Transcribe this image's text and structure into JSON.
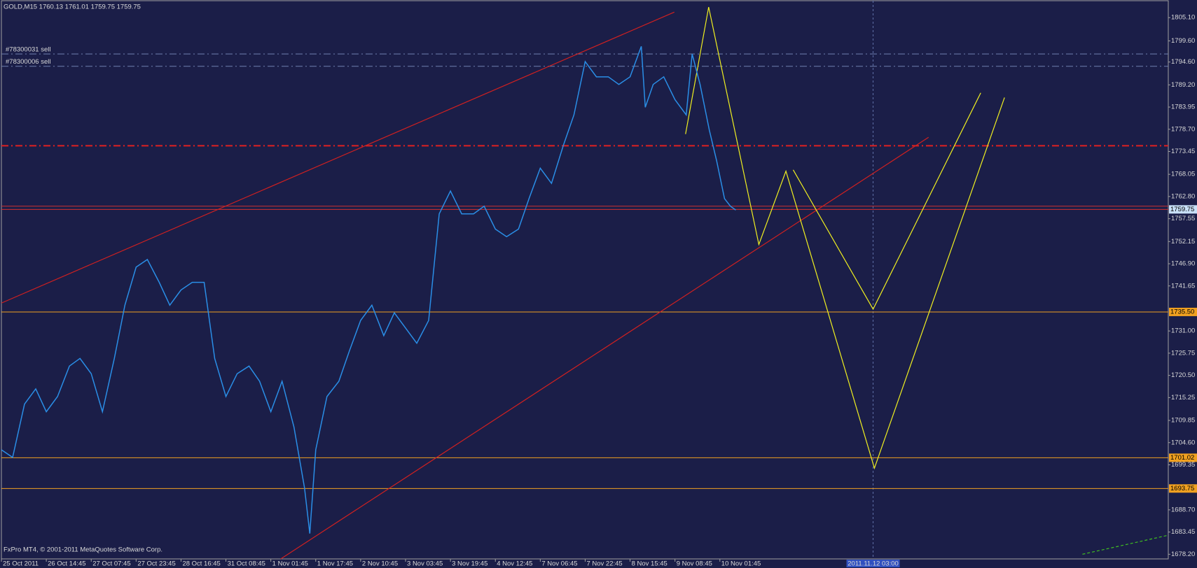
{
  "chart_data": {
    "type": "line",
    "title": "GOLD,M15  1760.13 1761.01 1759.75 1759.75",
    "footer": "FxPro MT4, © 2001-2011 MetaQuotes Software Corp.",
    "color": "#2a8ee6",
    "x": [
      0,
      17,
      35,
      52,
      68,
      85,
      103,
      119,
      136,
      153,
      171,
      187,
      204,
      221,
      239,
      255,
      272,
      289,
      307,
      323,
      340,
      357,
      375,
      391,
      408,
      425,
      443,
      459,
      467,
      476,
      493,
      511,
      527,
      544,
      561,
      579,
      595,
      612,
      629,
      647,
      663,
      680,
      697,
      715,
      731,
      748,
      765,
      783,
      799,
      816,
      833,
      851,
      867,
      884,
      901,
      919,
      935,
      952,
      969,
      975,
      987,
      1003,
      1020,
      1037,
      1046,
      1058,
      1072,
      1083,
      1095,
      1104,
      1112
    ],
    "values": [
      1702.9,
      1701.1,
      1713.7,
      1717.3,
      1711.9,
      1715.5,
      1722.7,
      1724.5,
      1720.9,
      1711.9,
      1724.5,
      1737.1,
      1746.1,
      1747.9,
      1742.5,
      1737.1,
      1740.7,
      1742.5,
      1742.5,
      1724.5,
      1715.5,
      1720.9,
      1722.7,
      1719.1,
      1711.9,
      1719.1,
      1708.3,
      1693.9,
      1683.1,
      1702.9,
      1715.5,
      1719.1,
      1726.3,
      1733.5,
      1737.1,
      1729.9,
      1735.3,
      1731.7,
      1728.1,
      1733.5,
      1758.7,
      1764.1,
      1758.7,
      1758.7,
      1760.5,
      1755.1,
      1753.3,
      1755.1,
      1762.3,
      1769.5,
      1765.9,
      1774.9,
      1782.1,
      1794.7,
      1791.1,
      1791.1,
      1789.3,
      1791.1,
      1798.3,
      1783.9,
      1789.3,
      1791.1,
      1785.7,
      1782.1,
      1796.5,
      1789.3,
      1778.5,
      1771.3,
      1762.3,
      1760.5,
      1759.6
    ],
    "xlim": [
      0,
      1767
    ],
    "ylim": [
      1677.1,
      1809.1
    ],
    "xticks": [
      {
        "value": 0,
        "label": "25 Oct 2011"
      },
      {
        "value": 68,
        "label": "26 Oct 14:45"
      },
      {
        "value": 136,
        "label": "27 Oct 07:45"
      },
      {
        "value": 204,
        "label": "27 Oct 23:45"
      },
      {
        "value": 272,
        "label": "28 Oct 16:45"
      },
      {
        "value": 340,
        "label": "31 Oct 08:45"
      },
      {
        "value": 408,
        "label": "1 Nov 01:45"
      },
      {
        "value": 476,
        "label": "1 Nov 17:45"
      },
      {
        "value": 544,
        "label": "2 Nov 10:45"
      },
      {
        "value": 612,
        "label": "3 Nov 03:45"
      },
      {
        "value": 680,
        "label": "3 Nov 19:45"
      },
      {
        "value": 748,
        "label": "4 Nov 12:45"
      },
      {
        "value": 816,
        "label": "7 Nov 06:45"
      },
      {
        "value": 884,
        "label": "7 Nov 22:45"
      },
      {
        "value": 952,
        "label": "8 Nov 15:45"
      },
      {
        "value": 1020,
        "label": "9 Nov 08:45"
      },
      {
        "value": 1088,
        "label": "10 Nov 01:45"
      }
    ],
    "yticks": [
      {
        "value": 1805.1,
        "label": "1805.10"
      },
      {
        "value": 1799.6,
        "label": "1799.60"
      },
      {
        "value": 1794.6,
        "label": "1794.60"
      },
      {
        "value": 1789.2,
        "label": "1789.20"
      },
      1783.95,
      {
        "value": 1778.7,
        "label": "1778.70"
      },
      1773.45,
      1768.05,
      {
        "value": 1762.8,
        "label": "1762.80"
      },
      1757.55,
      1752.15,
      {
        "value": 1746.9,
        "label": "1746.90"
      },
      1741.65,
      {
        "value": 1731.0,
        "label": "1731.00"
      },
      1725.75,
      {
        "value": 1720.5,
        "label": "1720.50"
      },
      1715.25,
      1709.85,
      {
        "value": 1704.6,
        "label": "1704.60"
      },
      1699.35,
      {
        "value": 1688.7,
        "label": "1688.70"
      },
      1683.45,
      {
        "value": 1678.2,
        "label": "1678.20"
      }
    ],
    "levels": [
      {
        "value": 1760.5,
        "color": "#d03030"
      },
      {
        "value": 1759.75,
        "label": "1759.75",
        "color": "#d03030",
        "label_color": "#c8e0f8"
      },
      {
        "value": 1735.5,
        "label": "1735.50",
        "color": "#f0a020",
        "label_color": "#f0a020"
      },
      {
        "value": 1701.02,
        "label": "1701.02",
        "color": "#f0a020",
        "label_color": "#f0a020"
      },
      {
        "value": 1693.75,
        "label": "1693.75",
        "color": "#f0a020",
        "label_color": "#f0a020"
      },
      {
        "value": 1774.8,
        "color": "#e02020",
        "style": "dashdot"
      }
    ],
    "orders": [
      {
        "value": 1796.5,
        "label": "#78300031 sell",
        "color": "#7080b0"
      },
      {
        "value": 1793.6,
        "label": "#78300006 sell",
        "color": "#7080b0"
      }
    ],
    "trendlines": [
      {
        "color": "#d02020",
        "x": [
          0,
          1019
        ],
        "y": [
          1737.6,
          1806.4
        ]
      },
      {
        "color": "#d02020",
        "x": [
          423,
          1404
        ],
        "y": [
          1677.1,
          1776.8
        ]
      },
      {
        "color": "#40c020",
        "style": "dashed",
        "x": [
          1637,
          1767
        ],
        "y": [
          1678.2,
          1682.7
        ]
      },
      {
        "color": "#f0f020",
        "x": [
          1036,
          1071,
          1147,
          1188,
          1322,
          1519
        ],
        "y": [
          1777.56,
          1807.6,
          1751.46,
          1768.8,
          1698.55,
          1786.2
        ]
      },
      {
        "color": "#f0f020",
        "x": [
          1199,
          1320,
          1483
        ],
        "y": [
          1769.1,
          1736.16,
          1787.3
        ]
      }
    ],
    "cursor": {
      "value": 1320,
      "label": "2011.11.12 03:00"
    }
  }
}
